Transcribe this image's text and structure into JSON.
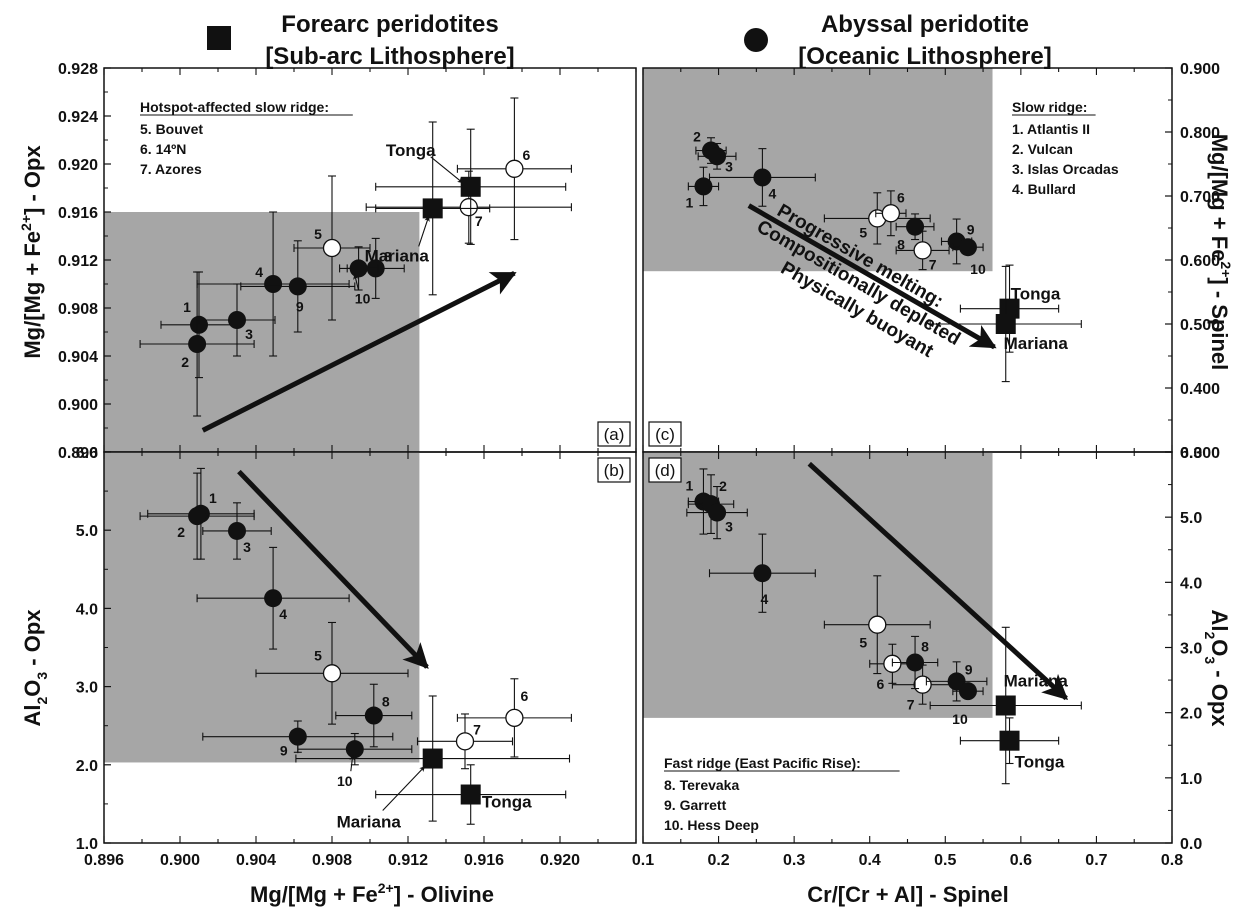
{
  "legend": {
    "forearc": {
      "line1": "Forearc peridotites",
      "line2": "[Sub-arc Lithosphere]"
    },
    "abyssal": {
      "line1": "Abyssal peridotite",
      "line2": "[Oceanic Lithosphere]"
    }
  },
  "colors": {
    "shade": "#a6a6a6",
    "black": "#111111",
    "white": "#ffffff"
  },
  "shared_axes": {
    "x_left": "Mg/[Mg + Fe2+] - Olivine",
    "x_right": "Cr/[Cr + Al] - Spinel",
    "y_top_left": "Mg/[Mg + Fe2+] - Opx",
    "y_top_right": "Mg/[Mg + Fe2+] - Spinel",
    "y_bottom_left": "Al2O3 - Opx",
    "y_bottom_right": "Al2O3 - Opx"
  },
  "chart_data": [
    {
      "type": "scatter",
      "panel_label": "(a)",
      "xlim": [
        0.896,
        0.924
      ],
      "ylim": [
        0.896,
        0.928
      ],
      "xticks": [
        0.896,
        0.9,
        0.904,
        0.908,
        0.912,
        0.916,
        0.92
      ],
      "yticks": [
        0.896,
        0.9,
        0.904,
        0.908,
        0.912,
        0.916,
        0.92,
        0.924,
        0.928
      ],
      "shaded_region": {
        "x": [
          0.896,
          0.9126
        ],
        "y": [
          0.896,
          0.916
        ]
      },
      "arrow": {
        "from": [
          0.9012,
          0.8978
        ],
        "to": [
          0.9176,
          0.9109
        ]
      },
      "legend_box": {
        "title": "Hotspot-affected slow ridge:",
        "items": [
          "5. Bouvet",
          "6. 14ºN",
          "7. Azores"
        ]
      },
      "points": [
        {
          "id": "1",
          "kind": "abyssal",
          "x": 0.901,
          "y": 0.9066,
          "xerr": 0.002,
          "yerr": 0.0044
        },
        {
          "id": "2",
          "kind": "abyssal",
          "x": 0.9009,
          "y": 0.905,
          "xerr": 0.003,
          "yerr": 0.006
        },
        {
          "id": "3",
          "kind": "abyssal",
          "x": 0.903,
          "y": 0.907,
          "xerr": 0.002,
          "yerr": 0.003
        },
        {
          "id": "4",
          "kind": "abyssal",
          "x": 0.9049,
          "y": 0.91,
          "xerr": 0.004,
          "yerr": 0.006
        },
        {
          "id": "5",
          "kind": "hotspot",
          "x": 0.908,
          "y": 0.913,
          "xerr": 0.002,
          "yerr": 0.006
        },
        {
          "id": "6",
          "kind": "hotspot",
          "x": 0.9176,
          "y": 0.9196,
          "xerr": 0.003,
          "yerr": 0.0059
        },
        {
          "id": "7",
          "kind": "hotspot",
          "x": 0.9152,
          "y": 0.9164,
          "xerr": 0.0054,
          "yerr": 0.003
        },
        {
          "id": "8",
          "kind": "abyssal",
          "x": 0.9103,
          "y": 0.9113,
          "xerr": 0.0015,
          "yerr": 0.0025
        },
        {
          "id": "9",
          "kind": "abyssal",
          "x": 0.9062,
          "y": 0.9098,
          "xerr": 0.003,
          "yerr": 0.0038
        },
        {
          "id": "10",
          "kind": "abyssal",
          "x": 0.9094,
          "y": 0.9113,
          "xerr": 0.001,
          "yerr": 0.0018
        },
        {
          "id": "Mariana",
          "kind": "forearc",
          "x": 0.9133,
          "y": 0.9163,
          "xerr": 0.003,
          "yerr": 0.0072
        },
        {
          "id": "Tonga",
          "kind": "forearc",
          "x": 0.9153,
          "y": 0.9181,
          "xerr": 0.005,
          "yerr": 0.0048
        }
      ]
    },
    {
      "type": "scatter",
      "panel_label": "(b)",
      "xlim": [
        0.896,
        0.924
      ],
      "ylim": [
        1.0,
        6.0
      ],
      "xticks": [
        0.896,
        0.9,
        0.904,
        0.908,
        0.912,
        0.916,
        0.92
      ],
      "yticks": [
        1.0,
        2.0,
        3.0,
        4.0,
        5.0,
        6.0
      ],
      "shaded_region": {
        "x": [
          0.896,
          0.9126
        ],
        "y": [
          2.03,
          6.0
        ]
      },
      "arrow": {
        "from": [
          0.9031,
          5.75
        ],
        "to": [
          0.913,
          3.25
        ]
      },
      "points": [
        {
          "id": "1",
          "kind": "abyssal",
          "x": 0.9011,
          "y": 5.21,
          "xerr": 0.0028,
          "yerr": 0.58
        },
        {
          "id": "2",
          "kind": "abyssal",
          "x": 0.9009,
          "y": 5.18,
          "xerr": 0.003,
          "yerr": 0.55
        },
        {
          "id": "3",
          "kind": "abyssal",
          "x": 0.903,
          "y": 4.99,
          "xerr": 0.0018,
          "yerr": 0.36
        },
        {
          "id": "4",
          "kind": "abyssal",
          "x": 0.9049,
          "y": 4.13,
          "xerr": 0.004,
          "yerr": 0.65
        },
        {
          "id": "5",
          "kind": "hotspot",
          "x": 0.908,
          "y": 3.17,
          "xerr": 0.004,
          "yerr": 0.65
        },
        {
          "id": "6",
          "kind": "hotspot",
          "x": 0.9176,
          "y": 2.6,
          "xerr": 0.003,
          "yerr": 0.5
        },
        {
          "id": "7",
          "kind": "hotspot",
          "x": 0.915,
          "y": 2.3,
          "xerr": 0.0025,
          "yerr": 0.35
        },
        {
          "id": "8",
          "kind": "abyssal",
          "x": 0.9102,
          "y": 2.63,
          "xerr": 0.002,
          "yerr": 0.4
        },
        {
          "id": "9",
          "kind": "abyssal",
          "x": 0.9062,
          "y": 2.36,
          "xerr": 0.005,
          "yerr": 0.2
        },
        {
          "id": "10",
          "kind": "abyssal",
          "x": 0.9092,
          "y": 2.2,
          "xerr": 0.003,
          "yerr": 0.2
        },
        {
          "id": "Mariana",
          "kind": "forearc",
          "x": 0.9133,
          "y": 2.08,
          "xerr": 0.0072,
          "yerr": 0.8
        },
        {
          "id": "Tonga",
          "kind": "forearc",
          "x": 0.9153,
          "y": 1.62,
          "xerr": 0.005,
          "yerr": 0.38
        }
      ]
    },
    {
      "type": "scatter",
      "panel_label": "(c)",
      "xlim": [
        0.1,
        0.8
      ],
      "ylim": [
        0.3,
        0.9
      ],
      "xticks": [
        0.1,
        0.2,
        0.3,
        0.4,
        0.5,
        0.6,
        0.7,
        0.8
      ],
      "yticks": [
        0.3,
        0.4,
        0.5,
        0.6,
        0.7,
        0.8,
        0.9
      ],
      "shaded_region": {
        "x": [
          0.1,
          0.5625
        ],
        "y": [
          0.5825,
          0.9
        ]
      },
      "arrow": {
        "from": [
          0.24,
          0.685
        ],
        "to": [
          0.565,
          0.464
        ]
      },
      "legend_box": {
        "title": "Slow ridge:",
        "items": [
          "1. Atlantis II",
          "2. Vulcan",
          "3. Islas Orcadas",
          "4. Bullard"
        ]
      },
      "annotation": [
        "Progressive melting:",
        "Compositionally depleted",
        "Physically buoyant"
      ],
      "points": [
        {
          "id": "1",
          "kind": "abyssal",
          "x": 0.18,
          "y": 0.715,
          "xerr": 0.02,
          "yerr": 0.03
        },
        {
          "id": "2",
          "kind": "abyssal",
          "x": 0.19,
          "y": 0.771,
          "xerr": 0.02,
          "yerr": 0.02
        },
        {
          "id": "3",
          "kind": "abyssal",
          "x": 0.198,
          "y": 0.762,
          "xerr": 0.025,
          "yerr": 0.02
        },
        {
          "id": "4",
          "kind": "abyssal",
          "x": 0.258,
          "y": 0.729,
          "xerr": 0.07,
          "yerr": 0.045
        },
        {
          "id": "5",
          "kind": "hotspot",
          "x": 0.41,
          "y": 0.665,
          "xerr": 0.07,
          "yerr": 0.04
        },
        {
          "id": "6",
          "kind": "hotspot",
          "x": 0.428,
          "y": 0.673,
          "xerr": 0.02,
          "yerr": 0.035
        },
        {
          "id": "7",
          "kind": "hotspot",
          "x": 0.47,
          "y": 0.615,
          "xerr": 0.035,
          "yerr": 0.03
        },
        {
          "id": "8",
          "kind": "abyssal",
          "x": 0.46,
          "y": 0.652,
          "xerr": 0.025,
          "yerr": 0.02
        },
        {
          "id": "9",
          "kind": "abyssal",
          "x": 0.515,
          "y": 0.629,
          "xerr": 0.02,
          "yerr": 0.035
        },
        {
          "id": "10",
          "kind": "abyssal",
          "x": 0.53,
          "y": 0.62,
          "xerr": 0.02,
          "yerr": 0.01
        },
        {
          "id": "Tonga",
          "kind": "forearc",
          "x": 0.585,
          "y": 0.524,
          "xerr": 0.065,
          "yerr": 0.068
        },
        {
          "id": "Mariana",
          "kind": "forearc",
          "x": 0.58,
          "y": 0.5,
          "xerr": 0.1,
          "yerr": 0.09
        }
      ]
    },
    {
      "type": "scatter",
      "panel_label": "(d)",
      "xlim": [
        0.1,
        0.8
      ],
      "ylim": [
        0.0,
        6.0
      ],
      "xticks": [
        0.1,
        0.2,
        0.3,
        0.4,
        0.5,
        0.6,
        0.7,
        0.8
      ],
      "yticks": [
        0.0,
        1.0,
        2.0,
        3.0,
        4.0,
        5.0,
        6.0
      ],
      "shaded_region": {
        "x": [
          0.1,
          0.5625
        ],
        "y": [
          1.92,
          6.0
        ]
      },
      "arrow": {
        "from": [
          0.32,
          5.82
        ],
        "to": [
          0.66,
          2.22
        ]
      },
      "legend_box": {
        "title": "Fast ridge (East Pacific Rise):",
        "items": [
          "8. Terevaka",
          "9. Garrett",
          "10. Hess Deep"
        ]
      },
      "points": [
        {
          "id": "1",
          "kind": "abyssal",
          "x": 0.18,
          "y": 5.24,
          "xerr": 0.02,
          "yerr": 0.5
        },
        {
          "id": "2",
          "kind": "abyssal",
          "x": 0.19,
          "y": 5.2,
          "xerr": 0.03,
          "yerr": 0.45
        },
        {
          "id": "3",
          "kind": "abyssal",
          "x": 0.198,
          "y": 5.07,
          "xerr": 0.04,
          "yerr": 0.4
        },
        {
          "id": "4",
          "kind": "abyssal",
          "x": 0.258,
          "y": 4.14,
          "xerr": 0.07,
          "yerr": 0.6
        },
        {
          "id": "5",
          "kind": "hotspot",
          "x": 0.41,
          "y": 3.35,
          "xerr": 0.07,
          "yerr": 0.75
        },
        {
          "id": "6",
          "kind": "hotspot",
          "x": 0.43,
          "y": 2.75,
          "xerr": 0.03,
          "yerr": 0.3
        },
        {
          "id": "7",
          "kind": "hotspot",
          "x": 0.47,
          "y": 2.43,
          "xerr": 0.04,
          "yerr": 0.3
        },
        {
          "id": "8",
          "kind": "abyssal",
          "x": 0.46,
          "y": 2.77,
          "xerr": 0.03,
          "yerr": 0.4
        },
        {
          "id": "9",
          "kind": "abyssal",
          "x": 0.515,
          "y": 2.48,
          "xerr": 0.04,
          "yerr": 0.3
        },
        {
          "id": "10",
          "kind": "abyssal",
          "x": 0.53,
          "y": 2.33,
          "xerr": 0.02,
          "yerr": 0.1
        },
        {
          "id": "Mariana",
          "kind": "forearc",
          "x": 0.58,
          "y": 2.11,
          "xerr": 0.1,
          "yerr": 1.2
        },
        {
          "id": "Tonga",
          "kind": "forearc",
          "x": 0.585,
          "y": 1.57,
          "xerr": 0.065,
          "yerr": 0.35
        }
      ]
    }
  ]
}
